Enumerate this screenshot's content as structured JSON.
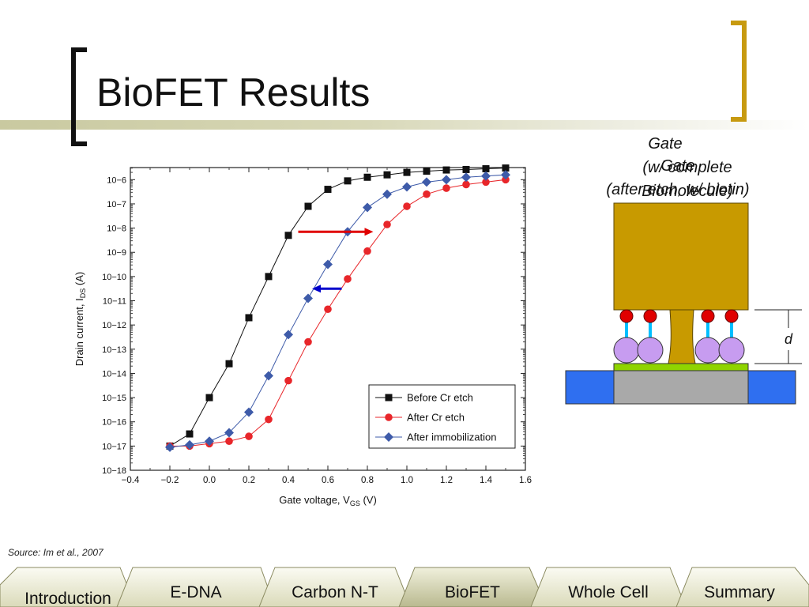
{
  "slide": {
    "title": "BioFET Results",
    "source": "Source: Im et al., 2007"
  },
  "nav": {
    "tabs": [
      {
        "label": "Introduction",
        "active": false
      },
      {
        "label": "E-DNA",
        "active": false
      },
      {
        "label": "Carbon N-T",
        "active": false
      },
      {
        "label": "BioFET",
        "active": true
      },
      {
        "label": "Whole Cell",
        "active": false
      },
      {
        "label": "Summary",
        "active": false
      }
    ]
  },
  "diagram": {
    "gate_labels": [
      {
        "lines": [
          "Gate",
          "(w/ complete",
          "Biomolecule)"
        ]
      },
      {
        "lines": [
          "Gate",
          "(after etch, w/ biotin)"
        ]
      }
    ],
    "distance_label": "d",
    "colors": {
      "gate": "#c89a00",
      "substrate": "#a9a9a9",
      "electrode": "#2f6ff0",
      "linker": "#00bfff",
      "biotin": "#e00000",
      "protein": "#c79cf0",
      "layer": "#8fd400"
    }
  },
  "chart_data": {
    "type": "line",
    "xlabel": "Gate voltage, V",
    "xlabel_sub": "GS",
    "xlabel_unit": " (V)",
    "ylabel": "Drain current, I",
    "ylabel_sub": "DS",
    "ylabel_unit": " (A)",
    "xlim": [
      -0.4,
      1.6
    ],
    "ylim_log10": [
      -18,
      -5.5
    ],
    "x_ticks": [
      "-0.4",
      "-0.2",
      "0.0",
      "0.2",
      "0.4",
      "0.6",
      "0.8",
      "1.0",
      "1.2",
      "1.4",
      "1.6"
    ],
    "y_ticks": [
      "10−18",
      "10−17",
      "10−16",
      "10−15",
      "10−14",
      "10−13",
      "10−12",
      "10−11",
      "10−10",
      "10−9",
      "10−8",
      "10−7",
      "10−6"
    ],
    "legend_position": "bottom-right",
    "series": [
      {
        "name": "Before Cr etch",
        "marker": "square",
        "color": "#111111",
        "x": [
          -0.2,
          -0.1,
          0.0,
          0.1,
          0.2,
          0.3,
          0.4,
          0.5,
          0.6,
          0.7,
          0.8,
          0.9,
          1.0,
          1.1,
          1.2,
          1.3,
          1.4,
          1.5
        ],
        "log10_y": [
          -17,
          -16.5,
          -15,
          -13.6,
          -11.7,
          -10,
          -8.3,
          -7.1,
          -6.4,
          -6.05,
          -5.9,
          -5.8,
          -5.7,
          -5.65,
          -5.6,
          -5.58,
          -5.55,
          -5.52
        ]
      },
      {
        "name": "After Cr etch",
        "marker": "circle",
        "color": "#e8262a",
        "x": [
          -0.2,
          -0.1,
          0.0,
          0.1,
          0.2,
          0.3,
          0.4,
          0.5,
          0.6,
          0.7,
          0.8,
          0.9,
          1.0,
          1.1,
          1.2,
          1.3,
          1.4,
          1.5
        ],
        "log10_y": [
          -17,
          -17,
          -16.9,
          -16.8,
          -16.6,
          -15.9,
          -14.3,
          -12.7,
          -11.35,
          -10.1,
          -8.95,
          -7.85,
          -7.1,
          -6.6,
          -6.35,
          -6.2,
          -6.1,
          -6.0
        ]
      },
      {
        "name": "After immobilization",
        "marker": "diamond",
        "color": "#3e5ba9",
        "x": [
          -0.2,
          -0.1,
          0.0,
          0.1,
          0.2,
          0.3,
          0.4,
          0.5,
          0.6,
          0.7,
          0.8,
          0.9,
          1.0,
          1.1,
          1.2,
          1.3,
          1.4,
          1.5
        ],
        "log10_y": [
          -17.05,
          -16.95,
          -16.8,
          -16.45,
          -15.6,
          -14.1,
          -12.4,
          -10.9,
          -9.5,
          -8.15,
          -7.15,
          -6.6,
          -6.3,
          -6.1,
          -6.0,
          -5.9,
          -5.85,
          -5.8
        ]
      }
    ],
    "annotations": [
      {
        "type": "arrow",
        "color": "#e00000",
        "from": {
          "x": 0.45,
          "log10_y": -8.15
        },
        "to": {
          "x": 0.83,
          "log10_y": -8.15
        }
      },
      {
        "type": "arrow",
        "color": "#0000cc",
        "from": {
          "x": 0.67,
          "log10_y": -10.5
        },
        "to": {
          "x": 0.52,
          "log10_y": -10.5
        }
      }
    ]
  }
}
